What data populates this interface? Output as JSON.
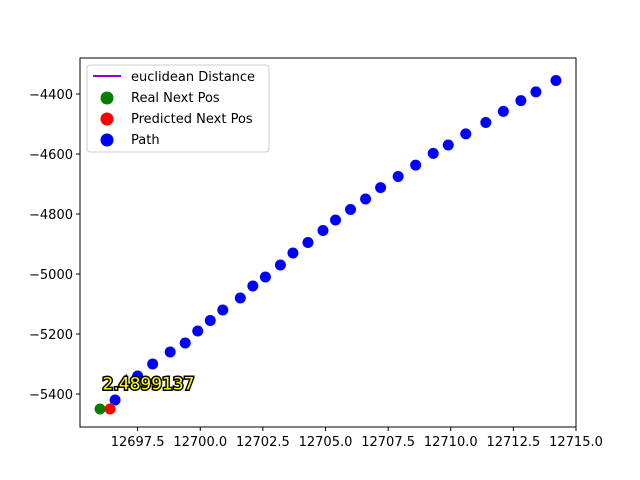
{
  "chart_data": {
    "type": "scatter",
    "title": "",
    "xlabel": "",
    "ylabel": "",
    "xlim": [
      12695.2,
      12715.0
    ],
    "ylim": [
      -5510,
      -4280
    ],
    "x_ticks": [
      12697.5,
      12700.0,
      12702.5,
      12705.0,
      12707.5,
      12710.0,
      12712.5,
      12715.0
    ],
    "x_tick_labels": [
      "12697.5",
      "12700.0",
      "12702.5",
      "12705.0",
      "12707.5",
      "12710.0",
      "12712.5",
      "12715.0"
    ],
    "y_ticks": [
      -5400,
      -5200,
      -5000,
      -4800,
      -4600,
      -4400
    ],
    "y_tick_labels": [
      "−5400",
      "−5200",
      "−5000",
      "−4800",
      "−4600",
      "−4400"
    ],
    "grid": false,
    "legend_position": "top-left",
    "series": [
      {
        "name": "euclidean Distance",
        "kind": "line",
        "color": "#9400d3",
        "points": [
          [
            12696.0,
            -5450
          ],
          [
            12696.4,
            -5450
          ]
        ]
      },
      {
        "name": "Real Next Pos",
        "kind": "scatter",
        "color": "#008000",
        "points": [
          [
            12696.0,
            -5450
          ]
        ]
      },
      {
        "name": "Predicted Next Pos",
        "kind": "scatter",
        "color": "#ff0000",
        "points": [
          [
            12696.4,
            -5450
          ]
        ]
      },
      {
        "name": "Path",
        "kind": "scatter",
        "color": "#0000ff",
        "points": [
          [
            12696.6,
            -5420
          ],
          [
            12697.5,
            -5340
          ],
          [
            12698.1,
            -5300
          ],
          [
            12698.8,
            -5260
          ],
          [
            12699.4,
            -5230
          ],
          [
            12699.9,
            -5190
          ],
          [
            12700.4,
            -5155
          ],
          [
            12700.9,
            -5120
          ],
          [
            12701.6,
            -5080
          ],
          [
            12702.1,
            -5040
          ],
          [
            12702.6,
            -5010
          ],
          [
            12703.2,
            -4970
          ],
          [
            12703.7,
            -4930
          ],
          [
            12704.3,
            -4895
          ],
          [
            12704.9,
            -4855
          ],
          [
            12705.4,
            -4820
          ],
          [
            12706.0,
            -4785
          ],
          [
            12706.6,
            -4750
          ],
          [
            12707.2,
            -4712
          ],
          [
            12707.9,
            -4675
          ],
          [
            12708.6,
            -4637
          ],
          [
            12709.3,
            -4598
          ],
          [
            12709.9,
            -4570
          ],
          [
            12710.6,
            -4533
          ],
          [
            12711.4,
            -4495
          ],
          [
            12712.1,
            -4458
          ],
          [
            12712.8,
            -4422
          ],
          [
            12713.4,
            -4393
          ],
          [
            12714.2,
            -4355
          ]
        ]
      }
    ],
    "annotations": [
      {
        "text": "2.4899137",
        "x": 12696.1,
        "y": -5385
      }
    ]
  }
}
